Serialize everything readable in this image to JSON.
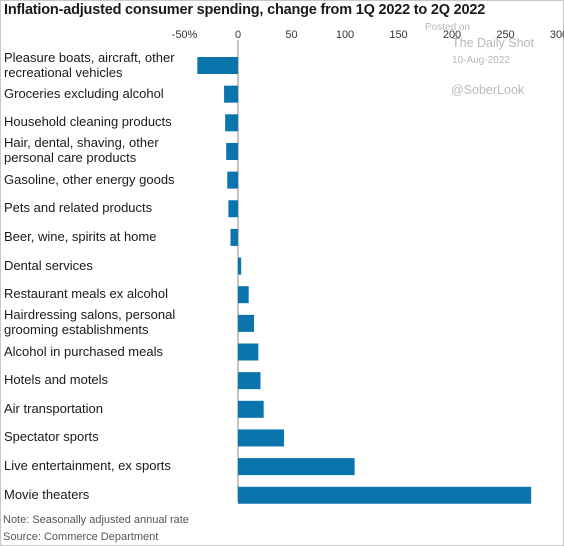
{
  "title": "Inflation-adjusted consumer spending, change from 1Q 2022 to 2Q 2022",
  "watermark": {
    "posted_on": "Posted on",
    "source_name": "The Daily Shot",
    "date": "10-Aug-2022",
    "handle": "@SoberLook"
  },
  "footer": {
    "note": "Note: Seasonally adjusted annual rate",
    "source": "Source: Commerce Department"
  },
  "colors": {
    "bar": "#0a74ad",
    "axis": "#888888",
    "text": "#1a1a1a"
  },
  "chart_data": {
    "type": "bar",
    "orientation": "horizontal",
    "title": "Inflation-adjusted consumer spending, change from 1Q 2022 to 2Q 2022",
    "xlim": [
      -50,
      300
    ],
    "xticks": [
      -50,
      0,
      50,
      100,
      150,
      200,
      250,
      300
    ],
    "xtick_labels": [
      "-50%",
      "0",
      "50",
      "100",
      "150",
      "200",
      "250",
      "300"
    ],
    "categories": [
      [
        "Pleasure boats, aircraft, other",
        "recreational vehicles"
      ],
      [
        "Groceries excluding alcohol"
      ],
      [
        "Household cleaning products"
      ],
      [
        "Hair, dental, shaving, other",
        "personal care products"
      ],
      [
        "Gasoline, other energy goods"
      ],
      [
        "Pets and related products"
      ],
      [
        "Beer, wine, spirits at home"
      ],
      [
        "Dental services"
      ],
      [
        "Restaurant meals ex alcohol"
      ],
      [
        "Hairdressing salons, personal",
        "grooming establishments"
      ],
      [
        "Alcohol in purchased meals"
      ],
      [
        "Hotels and motels"
      ],
      [
        "Air transportation"
      ],
      [
        "Spectator sports"
      ],
      [
        "Live entertainment, ex sports"
      ],
      [
        "Movie theaters"
      ]
    ],
    "values": [
      -38,
      -13,
      -12,
      -11,
      -10,
      -9,
      -7,
      3,
      10,
      15,
      19,
      21,
      24,
      43,
      109,
      274
    ],
    "grid": false,
    "legend": "none"
  }
}
